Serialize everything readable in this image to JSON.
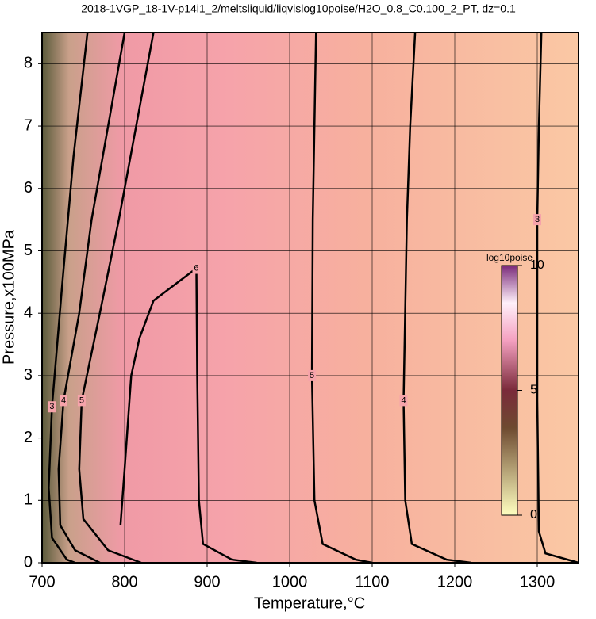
{
  "chart_data": {
    "type": "contour",
    "title": "2018-1VGP_18-1V-p14i1_2/meltsliquid/liqvislog10poise/H2O_0.8_C0.100_2_PT, dz=0.1",
    "xlabel": "Temperature,°C",
    "ylabel": "Pressure,x100MPa",
    "xlim": [
      700,
      1350
    ],
    "ylim": [
      0,
      8.5
    ],
    "xticks": [
      700,
      800,
      900,
      1000,
      1100,
      1200,
      1300
    ],
    "yticks": [
      0,
      1,
      2,
      3,
      4,
      5,
      6,
      7,
      8
    ],
    "grid": true,
    "contours": [
      {
        "level": 3,
        "x": [
          755,
          738,
          724,
          712,
          708,
          712,
          730,
          740
        ],
        "y": [
          8.5,
          6.5,
          4.4,
          2.5,
          1.2,
          0.4,
          0.05,
          0
        ]
      },
      {
        "level": 4,
        "x": [
          800,
          760,
          745,
          726,
          720,
          722,
          740,
          770
        ],
        "y": [
          8.5,
          5.5,
          4,
          2.6,
          1.5,
          0.6,
          0.2,
          0
        ]
      },
      {
        "level": 5,
        "x": [
          835,
          793,
          770,
          748,
          745,
          750,
          780,
          820
        ],
        "y": [
          8.5,
          5.5,
          4,
          2.6,
          1.5,
          0.7,
          0.2,
          0
        ]
      },
      {
        "level": 6,
        "x": [
          795,
          800,
          808,
          818,
          835,
          887,
          888,
          889,
          890,
          895,
          930,
          960
        ],
        "y": [
          0.6,
          1.5,
          3.0,
          3.6,
          4.2,
          4.72,
          3.0,
          2.0,
          1.0,
          0.3,
          0.05,
          0
        ]
      },
      {
        "level": 5,
        "x": [
          1032,
          1030,
          1028,
          1027,
          1030,
          1040,
          1080,
          1100
        ],
        "y": [
          8.5,
          7,
          5.5,
          3,
          1,
          0.3,
          0.05,
          0
        ]
      },
      {
        "level": 4,
        "x": [
          1152,
          1146,
          1142,
          1138,
          1140,
          1148,
          1190,
          1220
        ],
        "y": [
          8.5,
          7,
          5.5,
          2.6,
          1,
          0.3,
          0.05,
          0
        ]
      },
      {
        "level": 3,
        "x": [
          1305,
          1302,
          1300,
          1300,
          1302,
          1310,
          1350
        ],
        "y": [
          8.5,
          7,
          5.5,
          2.6,
          0.5,
          0.15,
          0
        ]
      }
    ],
    "colorbar": {
      "title": "log10poise",
      "lim": [
        0,
        10
      ],
      "ticks": [
        0,
        5,
        10
      ]
    }
  }
}
